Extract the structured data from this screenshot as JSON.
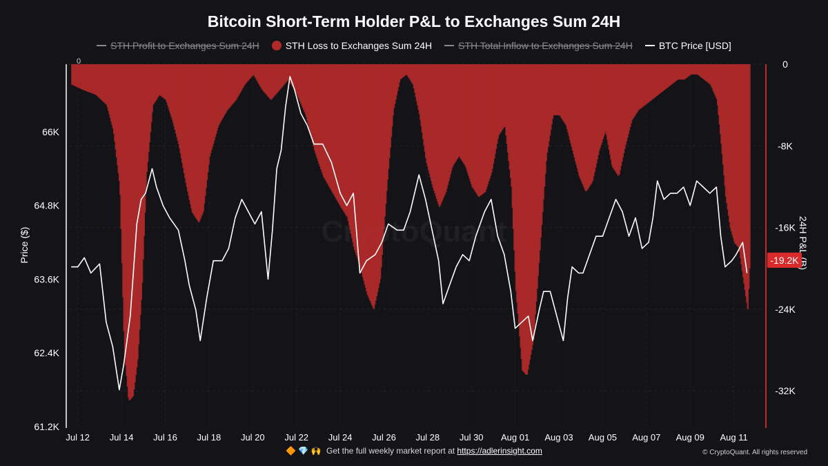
{
  "colors": {
    "background": "#141418",
    "loss_bar": "#b02a2a",
    "price_line": "#ffffff",
    "last_value_badge": "#d92b2b",
    "legend_off": "#8a8a8f"
  },
  "footer": {
    "icons": "🔶 💎 🙌",
    "text": "Get the full weekly market report at",
    "link_text": "https://adlerinsight.com",
    "copyright": "© CryptoQuant. All rights reserved"
  },
  "chart_data": {
    "type": "bar+line",
    "title": "Bitcoin Short-Term Holder P&L to Exchanges Sum 24H",
    "legend": [
      {
        "name": "STH Profit to Exchanges Sum 24H",
        "marker": "line",
        "color": "#8a8a8f",
        "enabled": false
      },
      {
        "name": "STH Loss to Exchanges Sum 24H",
        "marker": "dot",
        "color": "#b02a2a",
        "enabled": true
      },
      {
        "name": "STH Total Inflow to Exchanges Sum 24H",
        "marker": "line",
        "color": "#8a8a8f",
        "enabled": false
      },
      {
        "name": "BTC Price [USD]",
        "marker": "line",
        "color": "#ffffff",
        "enabled": true
      }
    ],
    "legend_position": "top-center",
    "grid": true,
    "watermark": "CryptoQuant",
    "x_tick_labels": [
      "Jul 12",
      "Jul 14",
      "Jul 16",
      "Jul 18",
      "Jul 20",
      "Jul 22",
      "Jul 24",
      "Jul 26",
      "Jul 28",
      "Jul 30",
      "Aug 01",
      "Aug 03",
      "Aug 05",
      "Aug 07",
      "Aug 09",
      "Aug 11"
    ],
    "x_range_days": [
      11.6,
      43.4
    ],
    "left_axis": {
      "label": "Price ($)",
      "ticks": [
        "61.2K",
        "62.4K",
        "63.6K",
        "64.8K",
        "66K"
      ],
      "tick_values": [
        61200,
        62400,
        63600,
        64800,
        66000
      ],
      "range": [
        61200,
        67100
      ]
    },
    "right_axis": {
      "label": "24H P&L (B)",
      "ticks": [
        "0",
        "-8K",
        "-16K",
        "-24K",
        "-32K"
      ],
      "tick_values": [
        0,
        -8000,
        -16000,
        -24000,
        -32000
      ],
      "range": [
        -35500,
        0
      ],
      "last_value_label": "-19.2K"
    },
    "secondary_zero_label": "0",
    "series": [
      {
        "name": "BTC Price [USD]",
        "axis": "left",
        "type": "line",
        "points": [
          [
            11.7,
            63800
          ],
          [
            12.0,
            63800
          ],
          [
            12.3,
            63950
          ],
          [
            12.6,
            63700
          ],
          [
            13.0,
            63850
          ],
          [
            13.3,
            62900
          ],
          [
            13.6,
            62500
          ],
          [
            13.9,
            61800
          ],
          [
            14.1,
            62200
          ],
          [
            14.4,
            63000
          ],
          [
            14.7,
            64500
          ],
          [
            14.9,
            64900
          ],
          [
            15.1,
            65000
          ],
          [
            15.4,
            65400
          ],
          [
            15.6,
            65100
          ],
          [
            15.9,
            64800
          ],
          [
            16.2,
            64600
          ],
          [
            16.6,
            64400
          ],
          [
            16.9,
            63900
          ],
          [
            17.1,
            63500
          ],
          [
            17.4,
            63100
          ],
          [
            17.6,
            62600
          ],
          [
            17.9,
            63300
          ],
          [
            18.2,
            63900
          ],
          [
            18.6,
            63900
          ],
          [
            18.9,
            64100
          ],
          [
            19.2,
            64600
          ],
          [
            19.5,
            64900
          ],
          [
            19.8,
            64700
          ],
          [
            20.1,
            64500
          ],
          [
            20.4,
            64700
          ],
          [
            20.7,
            63600
          ],
          [
            20.9,
            64400
          ],
          [
            21.1,
            65400
          ],
          [
            21.3,
            65700
          ],
          [
            21.5,
            66400
          ],
          [
            21.7,
            66900
          ],
          [
            21.9,
            66700
          ],
          [
            22.2,
            66300
          ],
          [
            22.5,
            66100
          ],
          [
            22.8,
            65800
          ],
          [
            23.2,
            65800
          ],
          [
            23.6,
            65500
          ],
          [
            24.0,
            65000
          ],
          [
            24.3,
            64800
          ],
          [
            24.6,
            65000
          ],
          [
            24.9,
            63700
          ],
          [
            25.2,
            63900
          ],
          [
            25.6,
            64000
          ],
          [
            25.9,
            64200
          ],
          [
            26.2,
            64500
          ],
          [
            26.6,
            64400
          ],
          [
            26.9,
            64400
          ],
          [
            27.2,
            64700
          ],
          [
            27.6,
            65300
          ],
          [
            27.9,
            64900
          ],
          [
            28.2,
            64400
          ],
          [
            28.5,
            63900
          ],
          [
            28.7,
            63200
          ],
          [
            29.0,
            63500
          ],
          [
            29.3,
            63800
          ],
          [
            29.6,
            64000
          ],
          [
            29.9,
            63900
          ],
          [
            30.2,
            64300
          ],
          [
            30.6,
            64700
          ],
          [
            30.9,
            64900
          ],
          [
            31.2,
            64300
          ],
          [
            31.5,
            64000
          ],
          [
            31.8,
            63400
          ],
          [
            32.0,
            62800
          ],
          [
            32.3,
            62900
          ],
          [
            32.6,
            63000
          ],
          [
            32.8,
            62600
          ],
          [
            33.1,
            63100
          ],
          [
            33.3,
            63400
          ],
          [
            33.6,
            63400
          ],
          [
            33.9,
            63000
          ],
          [
            34.2,
            62600
          ],
          [
            34.4,
            63300
          ],
          [
            34.6,
            63800
          ],
          [
            34.9,
            63700
          ],
          [
            35.1,
            63700
          ],
          [
            35.4,
            64000
          ],
          [
            35.7,
            64300
          ],
          [
            36.0,
            64300
          ],
          [
            36.3,
            64600
          ],
          [
            36.6,
            64900
          ],
          [
            36.9,
            64700
          ],
          [
            37.2,
            64300
          ],
          [
            37.5,
            64600
          ],
          [
            37.8,
            64100
          ],
          [
            38.1,
            64200
          ],
          [
            38.3,
            64600
          ],
          [
            38.5,
            65200
          ],
          [
            38.8,
            64900
          ],
          [
            39.1,
            65000
          ],
          [
            39.4,
            65000
          ],
          [
            39.7,
            65100
          ],
          [
            40.0,
            64800
          ],
          [
            40.3,
            65200
          ],
          [
            40.6,
            65100
          ],
          [
            40.9,
            65000
          ],
          [
            41.2,
            65100
          ],
          [
            41.4,
            64300
          ],
          [
            41.6,
            63800
          ],
          [
            41.9,
            63900
          ],
          [
            42.1,
            64000
          ],
          [
            42.4,
            64200
          ],
          [
            42.6,
            63700
          ]
        ]
      },
      {
        "name": "STH Loss to Exchanges Sum 24H",
        "axis": "right",
        "type": "bar",
        "points": [
          [
            11.7,
            -2000
          ],
          [
            12.2,
            -2500
          ],
          [
            12.8,
            -3000
          ],
          [
            13.3,
            -4000
          ],
          [
            13.6,
            -6500
          ],
          [
            13.9,
            -12000
          ],
          [
            14.1,
            -28000
          ],
          [
            14.3,
            -33000
          ],
          [
            14.5,
            -32500
          ],
          [
            14.7,
            -29000
          ],
          [
            14.9,
            -22000
          ],
          [
            15.1,
            -11000
          ],
          [
            15.4,
            -4000
          ],
          [
            15.7,
            -3000
          ],
          [
            16.0,
            -3500
          ],
          [
            16.3,
            -5500
          ],
          [
            16.6,
            -8000
          ],
          [
            16.9,
            -11500
          ],
          [
            17.2,
            -14500
          ],
          [
            17.5,
            -15500
          ],
          [
            17.7,
            -14500
          ],
          [
            18.0,
            -9000
          ],
          [
            18.4,
            -6000
          ],
          [
            18.8,
            -4500
          ],
          [
            19.2,
            -3500
          ],
          [
            19.6,
            -2000
          ],
          [
            20.0,
            -1000
          ],
          [
            20.4,
            -2500
          ],
          [
            20.8,
            -3500
          ],
          [
            21.2,
            -2500
          ],
          [
            21.6,
            -1500
          ],
          [
            22.0,
            -3000
          ],
          [
            22.4,
            -5000
          ],
          [
            22.8,
            -8500
          ],
          [
            23.2,
            -11000
          ],
          [
            23.6,
            -12500
          ],
          [
            24.0,
            -14000
          ],
          [
            24.3,
            -15000
          ],
          [
            24.6,
            -18000
          ],
          [
            24.9,
            -20000
          ],
          [
            25.2,
            -22500
          ],
          [
            25.5,
            -24000
          ],
          [
            25.8,
            -21000
          ],
          [
            26.1,
            -12000
          ],
          [
            26.4,
            -4500
          ],
          [
            26.7,
            -1500
          ],
          [
            27.0,
            -1000
          ],
          [
            27.3,
            -2000
          ],
          [
            27.6,
            -5000
          ],
          [
            27.9,
            -9500
          ],
          [
            28.2,
            -12000
          ],
          [
            28.5,
            -14000
          ],
          [
            28.8,
            -12500
          ],
          [
            29.1,
            -10000
          ],
          [
            29.4,
            -9000
          ],
          [
            29.7,
            -10000
          ],
          [
            30.0,
            -12000
          ],
          [
            30.3,
            -13000
          ],
          [
            30.6,
            -12500
          ],
          [
            30.9,
            -10500
          ],
          [
            31.2,
            -7000
          ],
          [
            31.5,
            -6000
          ],
          [
            31.8,
            -12000
          ],
          [
            32.0,
            -22000
          ],
          [
            32.3,
            -30000
          ],
          [
            32.5,
            -30500
          ],
          [
            32.8,
            -27000
          ],
          [
            33.1,
            -18000
          ],
          [
            33.4,
            -9000
          ],
          [
            33.7,
            -5000
          ],
          [
            34.0,
            -5000
          ],
          [
            34.3,
            -6000
          ],
          [
            34.6,
            -8500
          ],
          [
            34.9,
            -11000
          ],
          [
            35.2,
            -12500
          ],
          [
            35.5,
            -11500
          ],
          [
            35.8,
            -8500
          ],
          [
            36.1,
            -6500
          ],
          [
            36.4,
            -10000
          ],
          [
            36.7,
            -11000
          ],
          [
            37.0,
            -8000
          ],
          [
            37.3,
            -5500
          ],
          [
            37.6,
            -4500
          ],
          [
            37.9,
            -4000
          ],
          [
            38.2,
            -3500
          ],
          [
            38.5,
            -3000
          ],
          [
            38.8,
            -2500
          ],
          [
            39.1,
            -2000
          ],
          [
            39.4,
            -1500
          ],
          [
            39.7,
            -1500
          ],
          [
            40.0,
            -1000
          ],
          [
            40.3,
            -1000
          ],
          [
            40.6,
            -1500
          ],
          [
            40.9,
            -2000
          ],
          [
            41.2,
            -3500
          ],
          [
            41.4,
            -8000
          ],
          [
            41.6,
            -13000
          ],
          [
            41.8,
            -16000
          ],
          [
            42.0,
            -17500
          ],
          [
            42.2,
            -18000
          ],
          [
            42.4,
            -21000
          ],
          [
            42.6,
            -24000
          ],
          [
            42.7,
            -19200
          ]
        ]
      }
    ]
  }
}
